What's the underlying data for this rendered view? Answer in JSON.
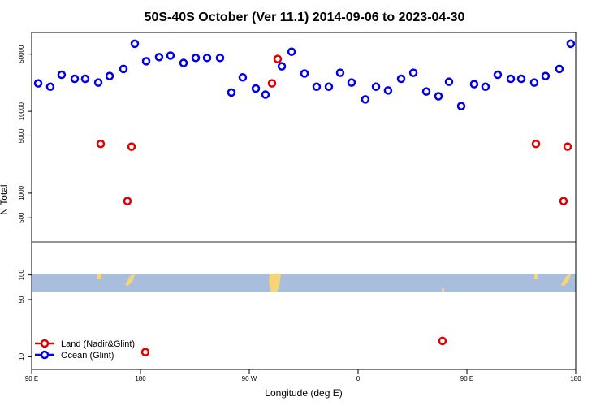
{
  "chart_data": {
    "type": "scatter",
    "title": "50S-40S October (Ver 11.1)   2014-09-06 to 2023-04-30",
    "x_label": "Longitude (deg E)",
    "y_label": "N Total",
    "log_y": true,
    "legend": "bottom-left",
    "xlim": [
      90,
      540
    ],
    "xticks": [
      {
        "value": 90,
        "label": "90 E"
      },
      {
        "value": 180,
        "label": "180"
      },
      {
        "value": 270,
        "label": "90 W"
      },
      {
        "value": 360,
        "label": "0"
      },
      {
        "value": 450,
        "label": "90 E"
      },
      {
        "value": 540,
        "label": "180"
      }
    ],
    "ylim": [
      7,
      92000
    ],
    "yticks": [
      10,
      50,
      100,
      500,
      1000,
      5000,
      10000,
      50000
    ],
    "series": [
      {
        "name": "Land (Nadir&Glint)",
        "color": "#e00000",
        "x": [
          147.1,
          169.2,
          172.6,
          184,
          288.8,
          293.5,
          429.8,
          507.1,
          529.9,
          533.3
        ],
        "values": [
          4000,
          800,
          3700,
          11.4,
          22000,
          43600,
          15.6,
          4000,
          800,
          3700
        ]
      },
      {
        "name": "Ocean (Glint)",
        "color": "#0000e0",
        "x": [
          95.4,
          105.4,
          114.8,
          125.6,
          134.3,
          145.1,
          154.5,
          165.9,
          175.3,
          184.7,
          195.4,
          204.8,
          215.6,
          225.7,
          235.1,
          245.8,
          255.2,
          264.6,
          275.4,
          283.4,
          296.9,
          305,
          315.7,
          325.7,
          335.8,
          345.2,
          354.6,
          366,
          374.8,
          384.8,
          395.6,
          405.7,
          416.4,
          426.5,
          435.2,
          445.3,
          456,
          465.4,
          475.5,
          486.3,
          495,
          505.7,
          515.1,
          526.5,
          535.9
        ],
        "values": [
          22000,
          20000,
          28000,
          25000,
          25000,
          22500,
          27000,
          33000,
          67000,
          41000,
          46000,
          48000,
          39000,
          45000,
          45000,
          45000,
          17000,
          26000,
          19000,
          16000,
          35500,
          53500,
          29000,
          20000,
          20000,
          29600,
          22500,
          14000,
          20000,
          18000,
          25000,
          29600,
          17500,
          15300,
          23000,
          11600,
          21500,
          20000,
          28000,
          25000,
          25000,
          22500,
          27000,
          33000,
          67000
        ]
      }
    ]
  }
}
